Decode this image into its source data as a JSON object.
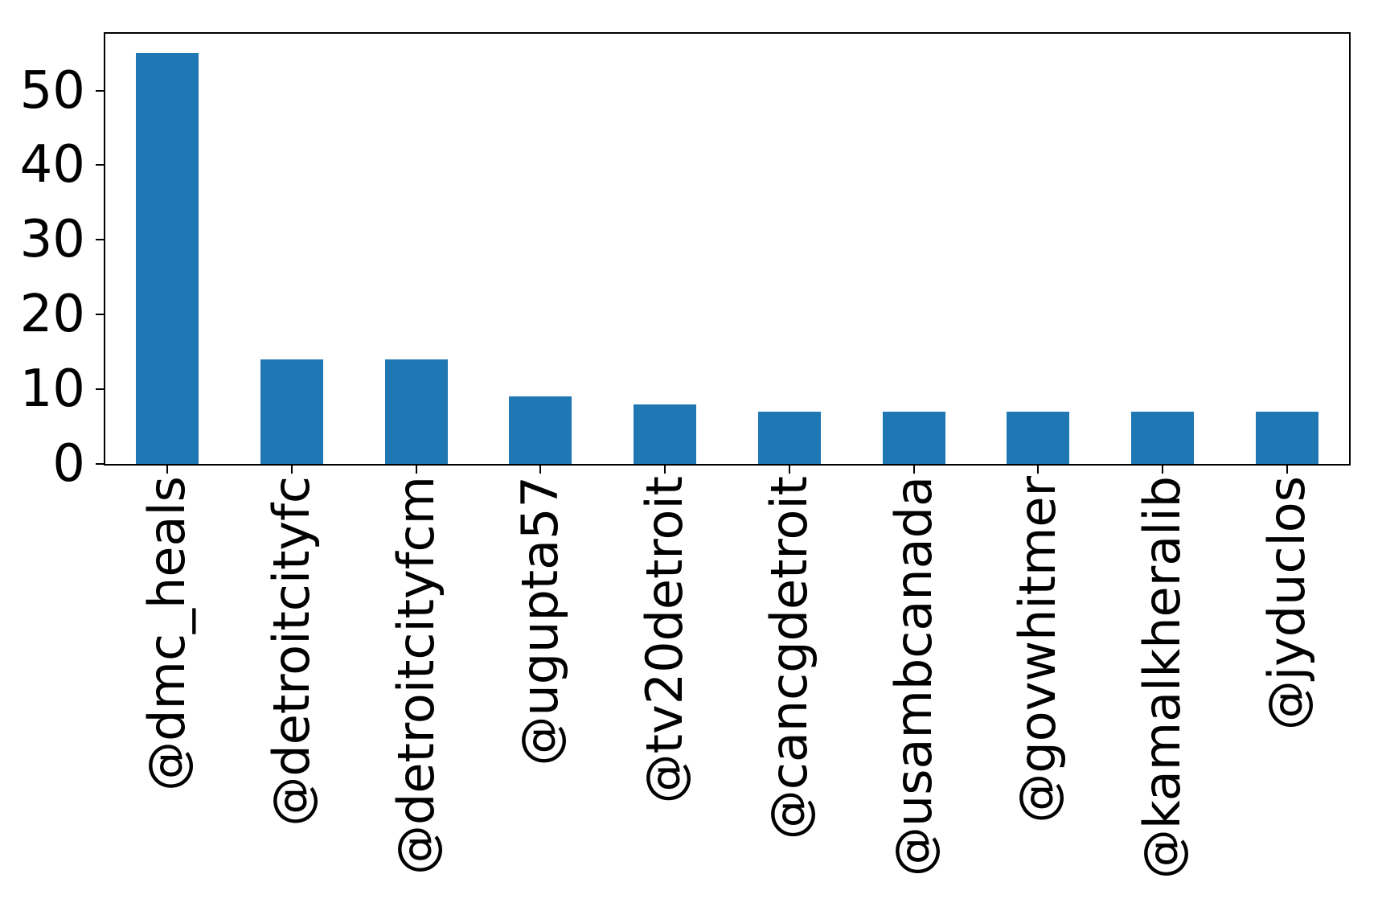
{
  "chart_data": {
    "type": "bar",
    "title": "",
    "xlabel": "",
    "ylabel": "",
    "categories": [
      "@dmc_heals",
      "@detroitcityfc",
      "@detroitcityfcm",
      "@ugupta57",
      "@tv20detroit",
      "@cancgdetroit",
      "@usambcanada",
      "@govwhitmer",
      "@kamalkheralib",
      "@jyduclos"
    ],
    "values": [
      55,
      14,
      14,
      9,
      8,
      7,
      7,
      7,
      7,
      7
    ],
    "yticks": [
      0,
      10,
      20,
      30,
      40,
      50
    ],
    "ylim": [
      0,
      57.6
    ],
    "bar_color": "#1f77b4",
    "bar_width_fraction": 0.5,
    "grid": "off",
    "legend": "none",
    "x_tick_label_rotation_deg": 90
  },
  "figure": {
    "background_color": "#ffffff",
    "spine_color": "#000000",
    "text_color": "#000000"
  }
}
